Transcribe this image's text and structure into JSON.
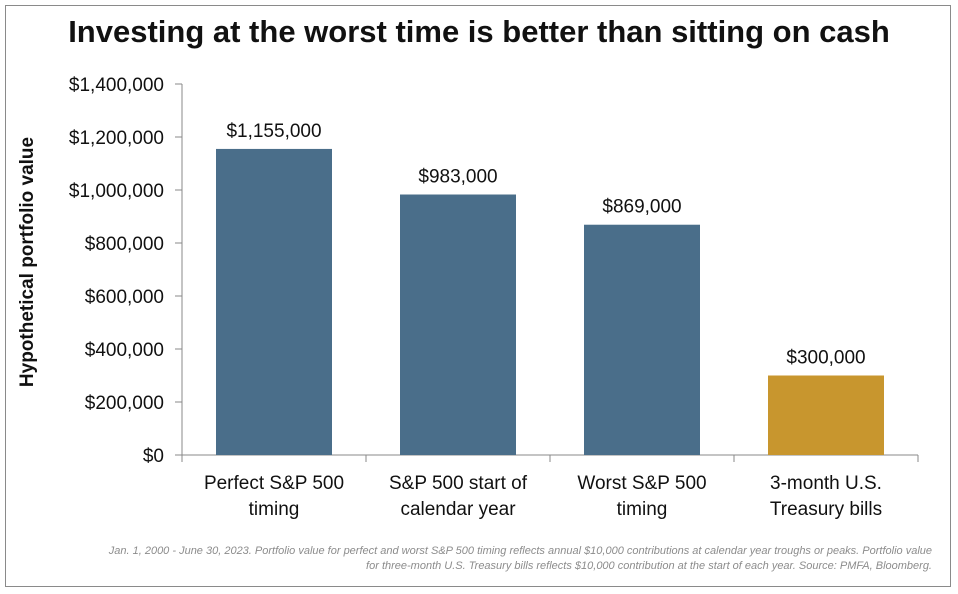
{
  "title": "Investing at the worst time is better than sitting on cash",
  "footnote": {
    "line1": "Jan. 1, 2000 - June 30, 2023. Portfolio value for perfect and worst S&P 500 timing reflects annual $10,000 contributions at calendar year troughs or peaks. Portfolio value",
    "line2": "for three-month U.S. Treasury bills reflects $10,000 contribution at the start of each year. Source: PMFA, Bloomberg."
  },
  "colors": {
    "primary_bar": "#4a6e8a",
    "highlight_bar": "#c8962e",
    "axis": "#888888",
    "text": "#111111"
  },
  "chart_data": {
    "type": "bar",
    "title": "Investing at the worst time is better than sitting on cash",
    "xlabel": "",
    "ylabel": "Hypothetical portfolio value",
    "ylim": [
      0,
      1400000
    ],
    "yticks": [
      0,
      200000,
      400000,
      600000,
      800000,
      1000000,
      1200000,
      1400000
    ],
    "ytick_labels": [
      "$0",
      "$200,000",
      "$400,000",
      "$600,000",
      "$800,000",
      "$1,000,000",
      "$1,200,000",
      "$1,400,000"
    ],
    "grid": false,
    "categories": [
      [
        "Perfect S&P 500",
        "timing"
      ],
      [
        "S&P 500 start of",
        "calendar year"
      ],
      [
        "Worst S&P 500",
        "timing"
      ],
      [
        "3-month U.S.",
        "Treasury bills"
      ]
    ],
    "values": [
      1155000,
      983000,
      869000,
      300000
    ],
    "data_labels": [
      "$1,155,000",
      "$983,000",
      "$869,000",
      "$300,000"
    ],
    "bar_colors": [
      "#4a6e8a",
      "#4a6e8a",
      "#4a6e8a",
      "#c8962e"
    ]
  }
}
